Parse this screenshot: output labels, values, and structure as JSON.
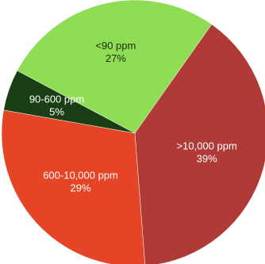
{
  "chart_data": {
    "type": "pie",
    "slices": [
      {
        "label": "<90 ppm",
        "pct_label": "27%",
        "value": 27,
        "color": "#8fdd55",
        "text_color": "#1d2b0f"
      },
      {
        "label": ">10,000 ppm",
        "pct_label": "39%",
        "value": 39,
        "color": "#b03a37",
        "text_color": "#ffffff"
      },
      {
        "label": "600-10,000 ppm",
        "pct_label": "29%",
        "value": 29,
        "color": "#e54427",
        "text_color": "#ffffff"
      },
      {
        "label": "90-600 ppm",
        "pct_label": "5%",
        "value": 5,
        "color": "#1a3f14",
        "text_color": "#ffffff"
      }
    ]
  }
}
